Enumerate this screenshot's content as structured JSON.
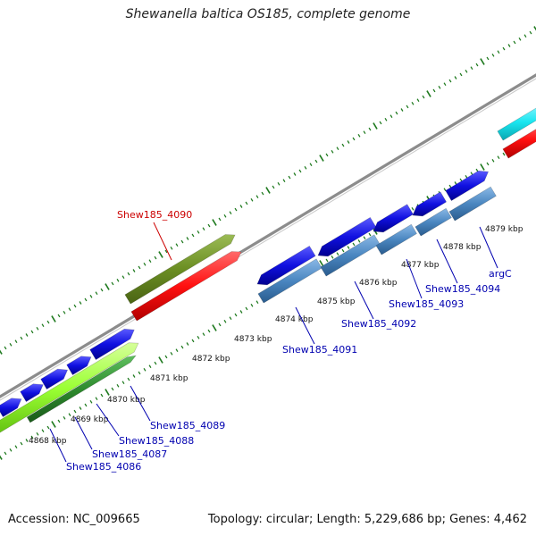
{
  "title": "Shewanella baltica OS185, complete genome",
  "footer": {
    "accession": "Accession: NC_009665",
    "info": "Topology: circular; Length: 5,229,686 bp; Genes: 4,462"
  },
  "colors": {
    "backbone": "#8c8c8c",
    "tick": "#1f7a1f",
    "kbp_text": "#111111",
    "cds_blue": "#1010e0",
    "cds_steelblue": "#4a86c0",
    "highlight_red": "#ff1010",
    "olive": "#6b8e23",
    "lime": "#9aff33",
    "darkgreen": "#2e8b2e",
    "cyan": "#19e6f0",
    "label_blue": "#0000b0",
    "label_red": "#cc0000"
  },
  "kbp_labels": [
    "4868 kbp",
    "4869 kbp",
    "4870 kbp",
    "4871 kbp",
    "4872 kbp",
    "4873 kbp",
    "4874 kbp",
    "4875 kbp",
    "4876 kbp",
    "4877 kbp",
    "4878 kbp",
    "4879 kbp"
  ],
  "gene_labels": [
    "Shew185_4090",
    "Shew185_4086",
    "Shew185_4087",
    "Shew185_4088",
    "Shew185_4089",
    "Shew185_4091",
    "Shew185_4092",
    "Shew185_4093",
    "Shew185_4094",
    "argC"
  ]
}
